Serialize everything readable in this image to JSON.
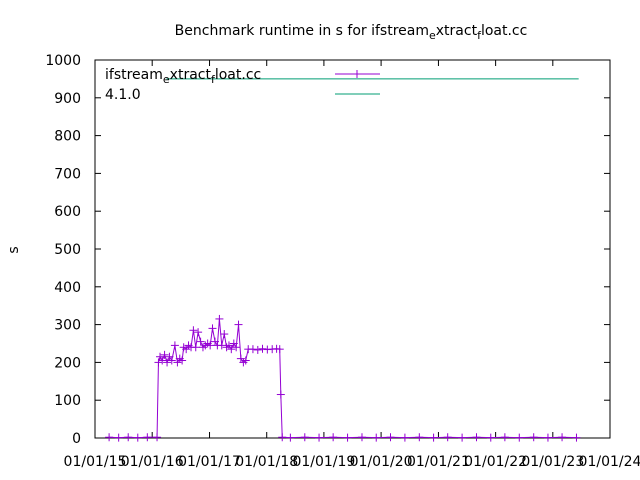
{
  "chart_data": {
    "type": "line",
    "title": "Benchmark runtime in s for ifstream_extract_float.cc",
    "title_parts": {
      "base1": "Benchmark runtime in s for ifstream",
      "sub1": "e",
      "base2": "xtract",
      "sub2": "f",
      "base3": "loat.cc"
    },
    "xlabel": "",
    "ylabel": "s",
    "ylim": [
      0,
      1000
    ],
    "x_range": [
      "2015-01-01",
      "2024-01-01"
    ],
    "y_ticks": [
      "0",
      "100",
      "200",
      "300",
      "400",
      "500",
      "600",
      "700",
      "800",
      "900",
      "1000"
    ],
    "x_ticks": [
      "01/01/15",
      "01/01/16",
      "01/01/17",
      "01/01/18",
      "01/01/19",
      "01/01/20",
      "01/01/21",
      "01/01/22",
      "01/01/23",
      "01/01/24"
    ],
    "grid": false,
    "legend_placement": "top-left",
    "series": [
      {
        "name": "ifstream_extract_float.cc",
        "name_parts": {
          "base1": "ifstream",
          "sub1": "e",
          "base2": "xtract",
          "sub2": "f",
          "base3": "loat.cc"
        },
        "color": "#9400d3",
        "marker": "plus",
        "points": [
          [
            "2015-04-01",
            2
          ],
          [
            "2015-06-01",
            1
          ],
          [
            "2015-08-01",
            2
          ],
          [
            "2015-10-01",
            1
          ],
          [
            "2015-12-01",
            2
          ],
          [
            "2016-02-01",
            2
          ],
          [
            "2016-02-10",
            200
          ],
          [
            "2016-02-20",
            215
          ],
          [
            "2016-03-05",
            205
          ],
          [
            "2016-03-20",
            220
          ],
          [
            "2016-04-05",
            200
          ],
          [
            "2016-04-20",
            215
          ],
          [
            "2016-05-05",
            205
          ],
          [
            "2016-05-25",
            245
          ],
          [
            "2016-06-10",
            200
          ],
          [
            "2016-06-25",
            210
          ],
          [
            "2016-07-10",
            205
          ],
          [
            "2016-07-20",
            240
          ],
          [
            "2016-08-05",
            235
          ],
          [
            "2016-08-20",
            245
          ],
          [
            "2016-09-05",
            240
          ],
          [
            "2016-09-20",
            285
          ],
          [
            "2016-10-05",
            240
          ],
          [
            "2016-10-20",
            280
          ],
          [
            "2016-11-05",
            255
          ],
          [
            "2016-11-20",
            240
          ],
          [
            "2016-12-05",
            245
          ],
          [
            "2016-12-20",
            250
          ],
          [
            "2017-01-05",
            245
          ],
          [
            "2017-01-20",
            290
          ],
          [
            "2017-02-05",
            255
          ],
          [
            "2017-02-20",
            245
          ],
          [
            "2017-03-05",
            315
          ],
          [
            "2017-03-20",
            245
          ],
          [
            "2017-04-05",
            275
          ],
          [
            "2017-04-20",
            240
          ],
          [
            "2017-05-05",
            245
          ],
          [
            "2017-05-20",
            235
          ],
          [
            "2017-06-05",
            250
          ],
          [
            "2017-06-20",
            240
          ],
          [
            "2017-07-05",
            300
          ],
          [
            "2017-07-20",
            210
          ],
          [
            "2017-08-05",
            200
          ],
          [
            "2017-08-20",
            205
          ],
          [
            "2017-09-05",
            235
          ],
          [
            "2017-10-05",
            235
          ],
          [
            "2017-11-05",
            233
          ],
          [
            "2017-12-05",
            236
          ],
          [
            "2018-01-05",
            234
          ],
          [
            "2018-02-05",
            235
          ],
          [
            "2018-03-05",
            236
          ],
          [
            "2018-03-25",
            235
          ],
          [
            "2018-04-01",
            115
          ],
          [
            "2018-04-10",
            2
          ],
          [
            "2018-06-01",
            1
          ],
          [
            "2018-09-01",
            2
          ],
          [
            "2018-12-01",
            1
          ],
          [
            "2019-03-01",
            2
          ],
          [
            "2019-06-01",
            1
          ],
          [
            "2019-09-01",
            2
          ],
          [
            "2019-12-01",
            1
          ],
          [
            "2020-03-01",
            2
          ],
          [
            "2020-06-01",
            1
          ],
          [
            "2020-09-01",
            2
          ],
          [
            "2020-12-01",
            1
          ],
          [
            "2021-03-01",
            2
          ],
          [
            "2021-06-01",
            1
          ],
          [
            "2021-09-01",
            2
          ],
          [
            "2021-12-01",
            1
          ],
          [
            "2022-03-01",
            2
          ],
          [
            "2022-06-01",
            1
          ],
          [
            "2022-09-01",
            2
          ],
          [
            "2022-12-01",
            1
          ],
          [
            "2023-03-01",
            2
          ],
          [
            "2023-06-01",
            1
          ]
        ]
      },
      {
        "name": "4.1.0",
        "color": "#009e73",
        "marker": "none",
        "points": [
          [
            "2016-04-01",
            950
          ],
          [
            "2023-06-15",
            950
          ]
        ]
      }
    ]
  }
}
